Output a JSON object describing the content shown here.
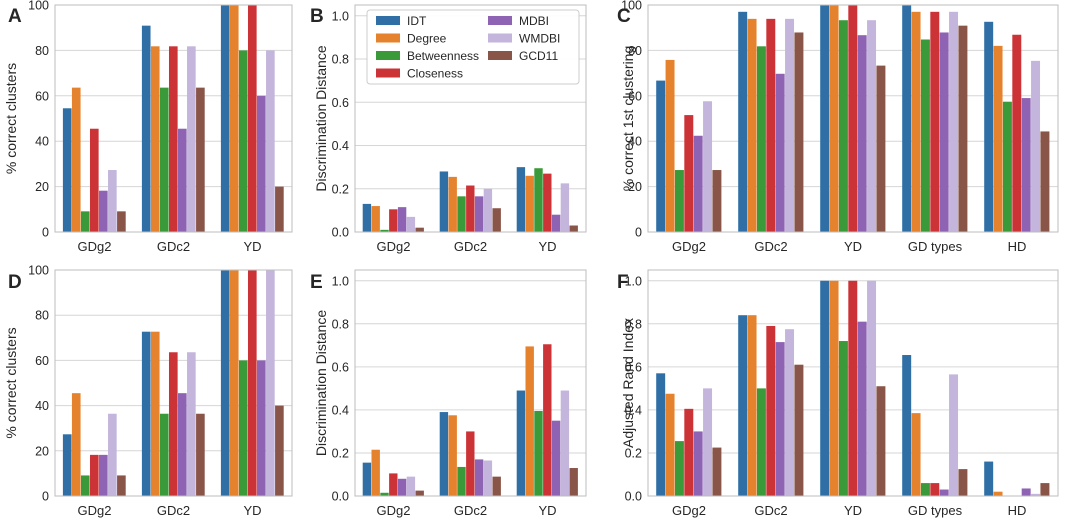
{
  "colors": {
    "IDT": "#2f6fa6",
    "Degree": "#e5822e",
    "Betweenness": "#3a9a3a",
    "Closeness": "#cc3336",
    "MDBI": "#8e63b3",
    "WMDBI": "#c3b5db",
    "GCD11": "#8a5549"
  },
  "legend": {
    "items": [
      "IDT",
      "Degree",
      "Betweenness",
      "Closeness",
      "MDBI",
      "WMDBI",
      "GCD11"
    ]
  },
  "chart_data": [
    {
      "panel": "A",
      "type": "bar",
      "ylabel": "% correct clusters",
      "ylim": [
        0,
        100
      ],
      "yticks": [
        0,
        20,
        40,
        60,
        80,
        100
      ],
      "categories": [
        "GDg2",
        "GDc2",
        "YD"
      ],
      "series": [
        {
          "name": "IDT",
          "values": [
            54.5,
            90.9,
            100
          ]
        },
        {
          "name": "Degree",
          "values": [
            63.6,
            81.8,
            100
          ]
        },
        {
          "name": "Betweenness",
          "values": [
            9.1,
            63.6,
            80
          ]
        },
        {
          "name": "Closeness",
          "values": [
            45.5,
            81.8,
            100
          ]
        },
        {
          "name": "MDBI",
          "values": [
            18.2,
            45.5,
            60
          ]
        },
        {
          "name": "WMDBI",
          "values": [
            27.3,
            81.8,
            80
          ]
        },
        {
          "name": "GCD11",
          "values": [
            9.1,
            63.6,
            20
          ]
        }
      ]
    },
    {
      "panel": "B",
      "type": "bar",
      "ylabel": "Discrimination Distance",
      "ylim": [
        0,
        1.05
      ],
      "yticks": [
        0.0,
        0.2,
        0.4,
        0.6,
        0.8,
        1.0
      ],
      "categories": [
        "GDg2",
        "GDc2",
        "YD"
      ],
      "series": [
        {
          "name": "IDT",
          "values": [
            0.13,
            0.28,
            0.3
          ]
        },
        {
          "name": "Degree",
          "values": [
            0.12,
            0.255,
            0.26
          ]
        },
        {
          "name": "Betweenness",
          "values": [
            0.01,
            0.165,
            0.295
          ]
        },
        {
          "name": "Closeness",
          "values": [
            0.105,
            0.215,
            0.27
          ]
        },
        {
          "name": "MDBI",
          "values": [
            0.115,
            0.165,
            0.08
          ]
        },
        {
          "name": "WMDBI",
          "values": [
            0.07,
            0.2,
            0.225
          ]
        },
        {
          "name": "GCD11",
          "values": [
            0.02,
            0.11,
            0.03
          ]
        }
      ]
    },
    {
      "panel": "C",
      "type": "bar",
      "ylabel": "% correct 1st clustering",
      "ylim": [
        0,
        100
      ],
      "yticks": [
        0,
        20,
        40,
        60,
        80,
        100
      ],
      "categories": [
        "GDg2",
        "GDc2",
        "YD",
        "GD types",
        "HD"
      ],
      "series": [
        {
          "name": "IDT",
          "values": [
            66.7,
            97,
            100,
            100,
            92.6
          ]
        },
        {
          "name": "Degree",
          "values": [
            75.8,
            93.9,
            100,
            97,
            82
          ]
        },
        {
          "name": "Betweenness",
          "values": [
            27.3,
            81.8,
            93.3,
            84.8,
            57.4
          ]
        },
        {
          "name": "Closeness",
          "values": [
            51.5,
            93.9,
            100,
            97,
            86.9
          ]
        },
        {
          "name": "MDBI",
          "values": [
            42.4,
            69.7,
            86.7,
            87.9,
            59
          ]
        },
        {
          "name": "WMDBI",
          "values": [
            57.6,
            93.9,
            93.3,
            97,
            75.4
          ]
        },
        {
          "name": "GCD11",
          "values": [
            27.3,
            87.9,
            73.3,
            90.9,
            44.3
          ]
        }
      ]
    },
    {
      "panel": "D",
      "type": "bar",
      "ylabel": "% correct clusters",
      "ylim": [
        0,
        100
      ],
      "yticks": [
        0,
        20,
        40,
        60,
        80,
        100
      ],
      "categories": [
        "GDg2",
        "GDc2",
        "YD"
      ],
      "series": [
        {
          "name": "IDT",
          "values": [
            27.3,
            72.7,
            100
          ]
        },
        {
          "name": "Degree",
          "values": [
            45.5,
            72.7,
            100
          ]
        },
        {
          "name": "Betweenness",
          "values": [
            9.1,
            36.4,
            60
          ]
        },
        {
          "name": "Closeness",
          "values": [
            18.2,
            63.6,
            100
          ]
        },
        {
          "name": "MDBI",
          "values": [
            18.2,
            45.5,
            60
          ]
        },
        {
          "name": "WMDBI",
          "values": [
            36.4,
            63.6,
            100
          ]
        },
        {
          "name": "GCD11",
          "values": [
            9.1,
            36.4,
            40
          ]
        }
      ]
    },
    {
      "panel": "E",
      "type": "bar",
      "ylabel": "Discrimination Distance",
      "ylim": [
        0,
        1.05
      ],
      "yticks": [
        0.0,
        0.2,
        0.4,
        0.6,
        0.8,
        1.0
      ],
      "categories": [
        "GDg2",
        "GDc2",
        "YD"
      ],
      "series": [
        {
          "name": "IDT",
          "values": [
            0.155,
            0.39,
            0.49
          ]
        },
        {
          "name": "Degree",
          "values": [
            0.215,
            0.375,
            0.695
          ]
        },
        {
          "name": "Betweenness",
          "values": [
            0.015,
            0.135,
            0.395
          ]
        },
        {
          "name": "Closeness",
          "values": [
            0.105,
            0.3,
            0.705
          ]
        },
        {
          "name": "MDBI",
          "values": [
            0.08,
            0.17,
            0.35
          ]
        },
        {
          "name": "WMDBI",
          "values": [
            0.09,
            0.165,
            0.49
          ]
        },
        {
          "name": "GCD11",
          "values": [
            0.025,
            0.09,
            0.13
          ]
        }
      ]
    },
    {
      "panel": "F",
      "type": "bar",
      "ylabel": "Adjusted Rand Index",
      "ylim": [
        0,
        1.05
      ],
      "yticks": [
        0.0,
        0.2,
        0.4,
        0.6,
        0.8,
        1.0
      ],
      "categories": [
        "GDg2",
        "GDc2",
        "YD",
        "GD types",
        "HD"
      ],
      "series": [
        {
          "name": "IDT",
          "values": [
            0.57,
            0.84,
            1.0,
            0.655,
            0.16
          ]
        },
        {
          "name": "Degree",
          "values": [
            0.475,
            0.84,
            1.0,
            0.385,
            0.02
          ]
        },
        {
          "name": "Betweenness",
          "values": [
            0.255,
            0.5,
            0.72,
            0.06,
            0.0
          ]
        },
        {
          "name": "Closeness",
          "values": [
            0.405,
            0.79,
            1.0,
            0.06,
            0.0
          ]
        },
        {
          "name": "MDBI",
          "values": [
            0.3,
            0.715,
            0.81,
            0.03,
            0.035
          ]
        },
        {
          "name": "WMDBI",
          "values": [
            0.5,
            0.775,
            1.0,
            0.565,
            0.01
          ]
        },
        {
          "name": "GCD11",
          "values": [
            0.225,
            0.61,
            0.51,
            0.125,
            0.06
          ]
        }
      ]
    }
  ]
}
